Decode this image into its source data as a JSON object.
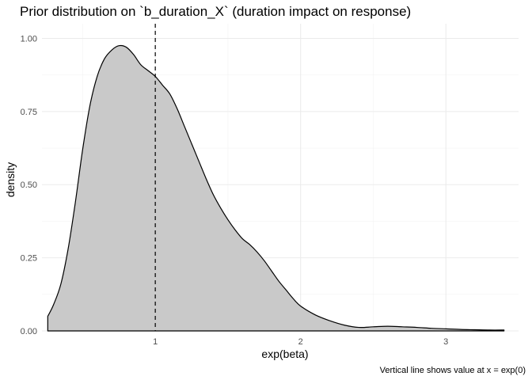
{
  "chart_data": {
    "type": "area",
    "title": "Prior distribution on `b_duration_X` (duration impact on response)",
    "xlabel": "exp(beta)",
    "ylabel": "density",
    "caption": "Vertical line shows value at x = exp(0)",
    "xlim": [
      0.22,
      3.5
    ],
    "ylim": [
      0,
      1.05
    ],
    "x_ticks": [
      1,
      2,
      3
    ],
    "x_tick_labels": [
      "1",
      "2",
      "3"
    ],
    "y_ticks": [
      0,
      0.25,
      0.5,
      0.75,
      1.0
    ],
    "y_tick_labels": [
      "0.00",
      "0.25",
      "0.50",
      "0.75",
      "1.00"
    ],
    "grid": true,
    "reference_line": {
      "x": 1,
      "style": "dashed"
    },
    "series": [
      {
        "x": [
          0.26,
          0.3,
          0.35,
          0.4,
          0.45,
          0.5,
          0.55,
          0.6,
          0.65,
          0.7,
          0.75,
          0.8,
          0.85,
          0.9,
          0.95,
          1.0,
          1.05,
          1.1,
          1.15,
          1.2,
          1.25,
          1.3,
          1.35,
          1.4,
          1.45,
          1.5,
          1.55,
          1.6,
          1.65,
          1.7,
          1.75,
          1.8,
          1.85,
          1.9,
          1.95,
          2.0,
          2.1,
          2.2,
          2.3,
          2.4,
          2.5,
          2.6,
          2.7,
          2.8,
          2.9,
          3.0,
          3.1,
          3.2,
          3.3,
          3.4
        ],
        "y": [
          0.05,
          0.09,
          0.16,
          0.28,
          0.44,
          0.62,
          0.77,
          0.87,
          0.93,
          0.96,
          0.975,
          0.97,
          0.945,
          0.91,
          0.89,
          0.87,
          0.84,
          0.81,
          0.76,
          0.7,
          0.64,
          0.58,
          0.52,
          0.465,
          0.42,
          0.38,
          0.345,
          0.315,
          0.295,
          0.27,
          0.24,
          0.205,
          0.17,
          0.14,
          0.11,
          0.085,
          0.055,
          0.035,
          0.02,
          0.012,
          0.014,
          0.016,
          0.014,
          0.012,
          0.009,
          0.007,
          0.005,
          0.004,
          0.003,
          0.003
        ]
      }
    ]
  }
}
